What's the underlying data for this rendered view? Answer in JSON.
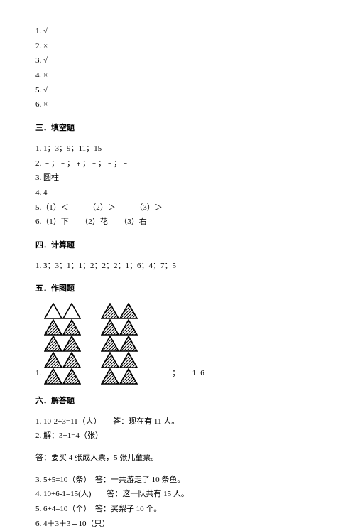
{
  "tf": {
    "items": [
      {
        "n": "1.",
        "mark": "√"
      },
      {
        "n": "2.",
        "mark": "×"
      },
      {
        "n": "3.",
        "mark": "√"
      },
      {
        "n": "4.",
        "mark": "×"
      },
      {
        "n": "5.",
        "mark": "√"
      },
      {
        "n": "6.",
        "mark": "×"
      }
    ]
  },
  "s3": {
    "title": "三．填空题",
    "a1": "1. 1；3；9；11；15",
    "a2": "2. ﹣；﹣；﹢；﹢；﹣；﹣",
    "a3": "3. 圆柱",
    "a4": "4. 4",
    "a5": "5.（1）＜　　　（2）＞　　　（3）＞",
    "a6": "6.（1）下　　（2）花　　（3）右"
  },
  "s4": {
    "title": "四．计算题",
    "a1": "1. 3；3；1；1；2；2；2；1；6；4；7；5"
  },
  "s5": {
    "title": "五．作图题",
    "prefix": "1.",
    "tail": "；　16"
  },
  "s6": {
    "title": "六．解答题",
    "a1a": "1. 10-2+3=11（人）　　答：现在有 11 人。",
    "a2": "2. 解：3+1=4（张）",
    "a2ans": "答：要买 4 张成人票，5 张儿童票。",
    "a3": "3. 5+5=10（条）　答：一共游走了 10 条鱼。",
    "a4": "4. 10+6-1=15(人)　　答：这一队共有 15 人。",
    "a5": "5. 6+4=10（个）　答：买梨子 10 个。",
    "a6": "6. 4＋3＋3＝10（只）"
  },
  "fig": {
    "tri_w": 26,
    "tri_h": 23,
    "stroke": "#000000",
    "stroke_w": 1.6,
    "hatch_gap": 4
  }
}
